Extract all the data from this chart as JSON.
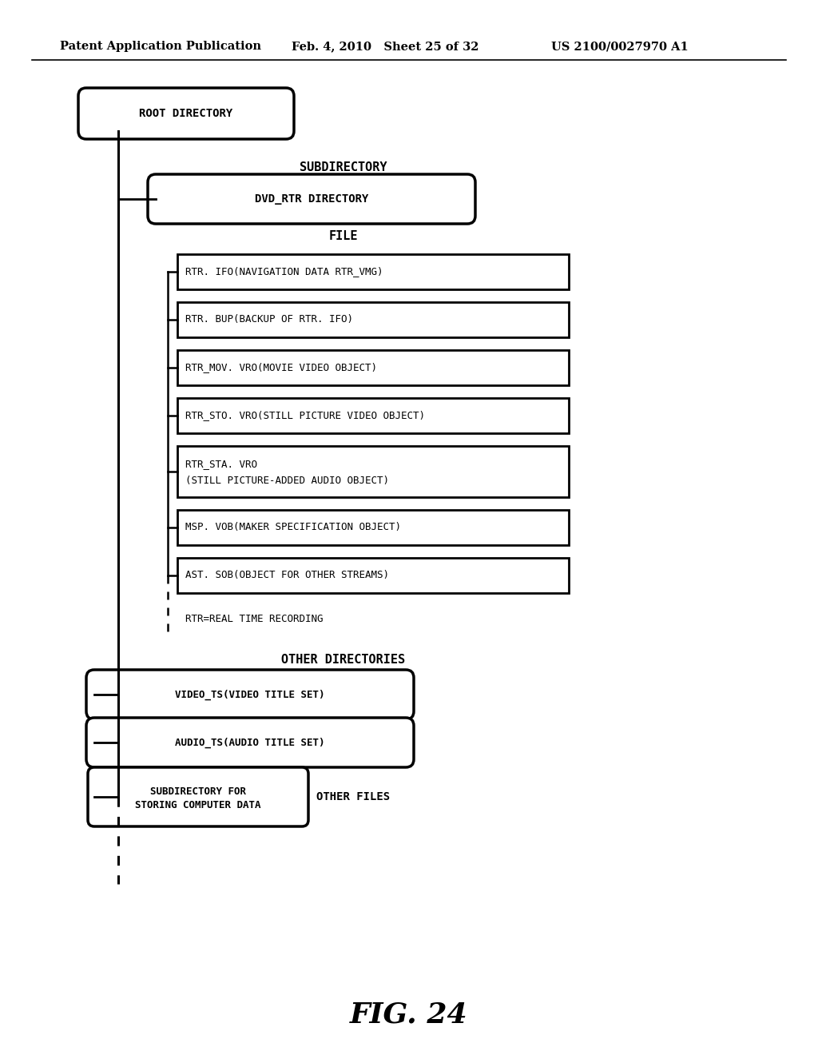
{
  "header_left": "Patent Application Publication",
  "header_mid": "Feb. 4, 2010   Sheet 25 of 32",
  "header_right": "US 2100/0027970 A1",
  "figure_label": "FIG. 24",
  "bg_color": "#ffffff",
  "root_node": "ROOT DIRECTORY",
  "subdirectory_label": "SUBDIRECTORY",
  "dvd_rtr_node": "DVD_RTR DIRECTORY",
  "file_label": "FILE",
  "file_boxes": [
    "RTR. IFO(NAVIGATION DATA RTR_VMG)",
    "RTR. BUP(BACKUP OF RTR. IFO)",
    "RTR_MOV. VRO(MOVIE VIDEO OBJECT)",
    "RTR_STO. VRO(STILL PICTURE VIDEO OBJECT)",
    "RTR_STA. VRO\n(STILL PICTURE-ADDED AUDIO OBJECT)",
    "MSP. VOB(MAKER SPECIFICATION OBJECT)",
    "AST. SOB(OBJECT FOR OTHER STREAMS)"
  ],
  "rtr_note": "RTR=REAL TIME RECORDING",
  "other_dir_label": "OTHER DIRECTORIES",
  "other_nodes": [
    "VIDEO_TS(VIDEO TITLE SET)",
    "AUDIO_TS(AUDIO TITLE SET)"
  ],
  "subdir_computer": "SUBDIRECTORY FOR\nSTORING COMPUTER DATA",
  "other_files_label": "OTHER FILES"
}
